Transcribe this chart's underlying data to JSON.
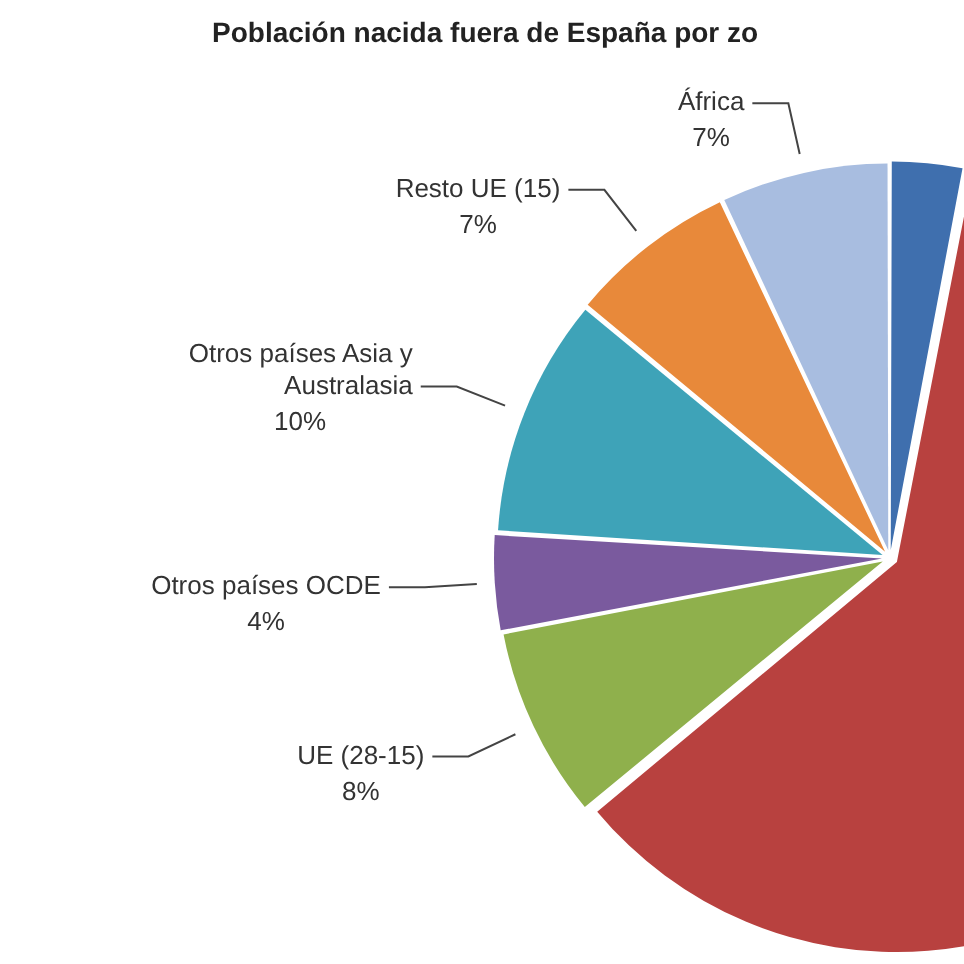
{
  "chart_data": {
    "type": "pie",
    "title": "Población nacida fuera de España por zo",
    "categories": [
      null,
      null,
      "UE (28-15)",
      "Otros países OCDE",
      "Otros países Asia y Australasia",
      "Resto UE (15)",
      "África"
    ],
    "values": [
      3,
      61,
      8,
      4,
      10,
      7,
      7
    ],
    "value_labels": [
      null,
      null,
      "8%",
      "4%",
      "10%",
      "7%",
      "7%"
    ],
    "colors": [
      "#3f6fae",
      "#b8413f",
      "#8fb04c",
      "#7a5a9e",
      "#3ea3b8",
      "#e8893a",
      "#a8bde0"
    ],
    "legend": false
  }
}
